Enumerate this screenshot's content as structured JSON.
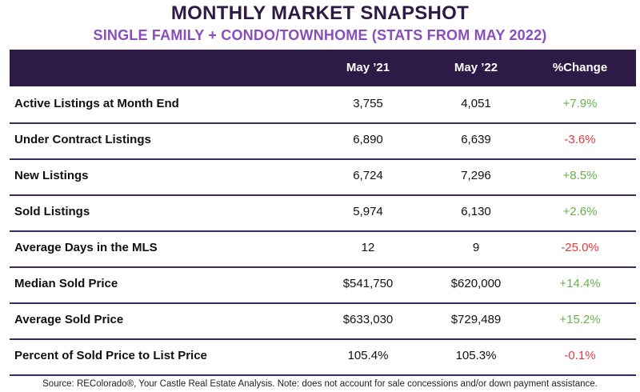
{
  "title": "MONTHLY MARKET SNAPSHOT",
  "subtitle": "SINGLE FAMILY + CONDO/TOWNHOME (STATS FROM MAY 2022)",
  "columns": [
    "May ’21",
    "May ’22",
    "%Change"
  ],
  "rows": [
    {
      "label": "Active Listings at Month End",
      "may21": "3,755",
      "may22": "4,051",
      "change": "+7.9%"
    },
    {
      "label": "Under Contract Listings",
      "may21": "6,890",
      "may22": "6,639",
      "change": "-3.6%"
    },
    {
      "label": "New Listings",
      "may21": "6,724",
      "may22": "7,296",
      "change": "+8.5%"
    },
    {
      "label": "Sold Listings",
      "may21": "5,974",
      "may22": "6,130",
      "change": "+2.6%"
    },
    {
      "label": "Average Days in the MLS",
      "may21": "12",
      "may22": "9",
      "change": "-25.0%"
    },
    {
      "label": "Median Sold Price",
      "may21": "$541,750",
      "may22": "$620,000",
      "change": "+14.4%"
    },
    {
      "label": "Average Sold Price",
      "may21": "$633,030",
      "may22": "$729,489",
      "change": "+15.2%"
    },
    {
      "label": "Percent of Sold Price to List Price",
      "may21": "105.4%",
      "may22": "105.3%",
      "change": "-0.1%"
    }
  ],
  "footer": "Source: REColorado®, Your Castle Real Estate Analysis. Note: does not account for sale concessions and/or down payment assistance.",
  "colors": {
    "header": "#2e1a47",
    "subtitle": "#8a4dbd",
    "positive": "#6ab04c",
    "negative": "#e8383d"
  }
}
